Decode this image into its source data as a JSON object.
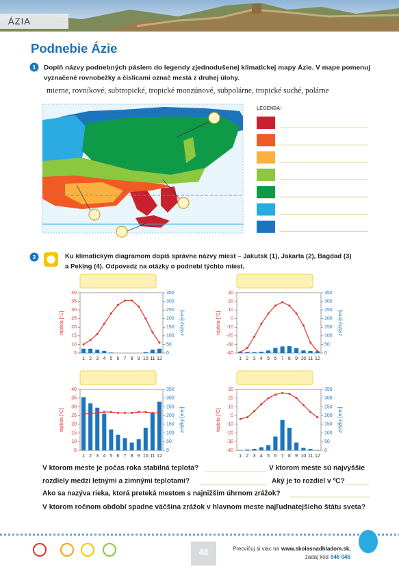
{
  "header": {
    "section": "ÁZIA"
  },
  "title": "Podnebie Ázie",
  "task1": {
    "number": "1",
    "text_lines": [
      "Doplň názvy podnebných pásiem do legendy zjednodušenej klimatickej mapy Ázie. V mape pomenuj",
      "vyznačené rovnobežky a číslicami označ mestá z druhej úlohy."
    ],
    "options": "mierne, rovníkové, subtropické, tropické monzúnové, subpolárne, tropické suché, polárne",
    "legend_title": "LEGENDA:",
    "legend_colors": [
      "#c8202f",
      "#f15a24",
      "#fbb040",
      "#8dc63f",
      "#0f9a48",
      "#29abe2",
      "#1c75bc"
    ]
  },
  "task2": {
    "number": "2",
    "text_lines": [
      "Ku klimatickým diagramom dopíš správne názvy miest – Jakutsk (1), Jakarta (2), Bagdad (3)",
      "a Peking (4). Odpovedz na otázky o podnebí týchto miest."
    ]
  },
  "chart_data": [
    {
      "type": "combo",
      "ylabel": "teplota [°C]",
      "y2label": "zrážky [mm]",
      "categories": [
        "1",
        "2",
        "3",
        "4",
        "5",
        "6",
        "7",
        "8",
        "9",
        "10",
        "11",
        "12"
      ],
      "ylim": [
        5,
        40
      ],
      "yticks": [
        5,
        10,
        15,
        20,
        25,
        30,
        35,
        40
      ],
      "y2lim": [
        0,
        350
      ],
      "y2ticks": [
        0,
        50,
        100,
        150,
        200,
        250,
        300,
        350
      ],
      "series": [
        {
          "kind": "line",
          "color": "#e5332a",
          "values": [
            10,
            12.5,
            16,
            22,
            28,
            33,
            35.5,
            35.5,
            32,
            25,
            17,
            11
          ]
        },
        {
          "kind": "bar",
          "axis": "y2",
          "color": "#1c75bc",
          "values": [
            25,
            25,
            20,
            12,
            3,
            0,
            0,
            0,
            0,
            5,
            20,
            25
          ]
        }
      ]
    },
    {
      "type": "combo",
      "ylabel": "teplota [°C]",
      "y2label": "zrážky [mm]",
      "categories": [
        "1",
        "2",
        "3",
        "4",
        "5",
        "6",
        "7",
        "8",
        "9",
        "10",
        "11",
        "12"
      ],
      "ylim": [
        -40,
        30
      ],
      "yticks": [
        -40,
        -30,
        -20,
        -10,
        0,
        10,
        20,
        30
      ],
      "y2lim": [
        0,
        350
      ],
      "y2ticks": [
        0,
        50,
        100,
        150,
        200,
        250,
        300,
        350
      ],
      "series": [
        {
          "kind": "line",
          "color": "#e5332a",
          "values": [
            -39,
            -34,
            -21,
            -6,
            6,
            15,
            19,
            15,
            6,
            -8,
            -28,
            -38
          ]
        },
        {
          "kind": "bar",
          "axis": "y2",
          "color": "#1c75bc",
          "values": [
            8,
            6,
            5,
            8,
            15,
            30,
            38,
            40,
            28,
            15,
            12,
            10
          ]
        }
      ]
    },
    {
      "type": "combo",
      "ylabel": "teplota [°C]",
      "y2label": "zrážky [mm]",
      "categories": [
        "1",
        "2",
        "3",
        "4",
        "5",
        "6",
        "7",
        "8",
        "9",
        "10",
        "11",
        "12"
      ],
      "ylim": [
        5,
        40
      ],
      "yticks": [
        5,
        10,
        15,
        20,
        25,
        30,
        35,
        40
      ],
      "y2lim": [
        0,
        350
      ],
      "y2ticks": [
        0,
        50,
        100,
        150,
        200,
        250,
        300,
        350
      ],
      "series": [
        {
          "kind": "line",
          "color": "#e5332a",
          "values": [
            26,
            26,
            26.5,
            27,
            27,
            26.5,
            26.5,
            26.5,
            27,
            27,
            26.5,
            26.5
          ]
        },
        {
          "kind": "bar",
          "axis": "y2",
          "color": "#1c75bc",
          "values": [
            305,
            270,
            245,
            210,
            120,
            90,
            70,
            45,
            65,
            130,
            215,
            280
          ]
        }
      ]
    },
    {
      "type": "combo",
      "ylabel": "teplota [°C]",
      "y2label": "zrážky [mm]",
      "categories": [
        "1",
        "2",
        "3",
        "4",
        "5",
        "6",
        "7",
        "8",
        "9",
        "10",
        "11",
        "12"
      ],
      "ylim": [
        -40,
        30
      ],
      "yticks": [
        -40,
        -30,
        -20,
        -10,
        0,
        10,
        20,
        30
      ],
      "y2lim": [
        0,
        350
      ],
      "y2ticks": [
        0,
        50,
        100,
        150,
        200,
        250,
        300,
        350
      ],
      "series": [
        {
          "kind": "line",
          "color": "#e5332a",
          "values": [
            -4,
            -2,
            5,
            13,
            20,
            24,
            26,
            25,
            20,
            12,
            4,
            -2
          ]
        },
        {
          "kind": "bar",
          "axis": "y2",
          "color": "#1c75bc",
          "values": [
            3,
            5,
            8,
            18,
            30,
            80,
            175,
            130,
            45,
            15,
            8,
            3
          ]
        }
      ]
    }
  ],
  "questions": [
    "V ktorom meste je počas roka stabilná teplota?",
    "V ktorom meste sú najvyššie",
    "rozdiely medzi letnými a zimnými teplotami?",
    "Aký je to rozdiel v ºC?",
    "Ako sa nazýva rieka, ktorá preteká mestom s najnižším úhrnom zrážok?",
    "V ktorom ročnom období spadne väčšina zrážok v hlavnom meste najľudnatejšieho štátu sveta?"
  ],
  "footer": {
    "page": "46",
    "text": "Precvičuj si viac na",
    "site": "www.skolasnadhladom.sk,",
    "code_label": "zadaj kód",
    "code": "946 046"
  }
}
